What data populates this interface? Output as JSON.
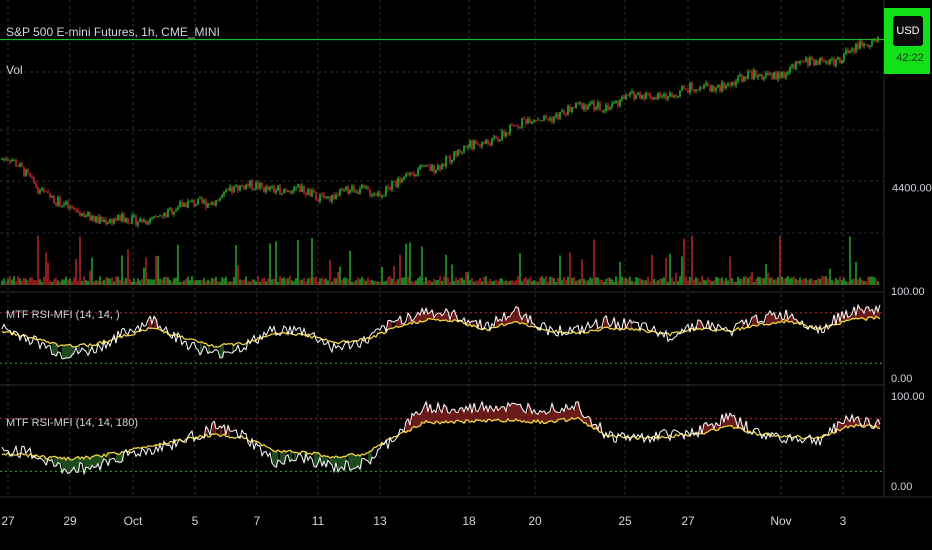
{
  "header": {
    "symbol_title": "S&P 500 E-mini Futures, 1h, CME_MINI",
    "volume_label": "Vol",
    "currency_button": "USD",
    "last_price_fragment": "42:22"
  },
  "pane1": {
    "indicator_label": "MTF RSI-MFI (14, 14, )",
    "top_tick": "100.00",
    "bottom_tick": "0.00"
  },
  "pane2": {
    "indicator_label": "MTF RSI-MFI (14, 14, 180)",
    "top_tick": "100.00",
    "bottom_tick": "0.00"
  },
  "colors": {
    "background": "#000000",
    "candle_up": "#26b12b",
    "candle_down": "#c0282d",
    "rsi_line": "#ffffff",
    "mfi_line": "#f2d43d",
    "overbought_fill": "#6b1a1a",
    "oversold_fill": "#1e4a1e",
    "last_price": "#14e01a"
  },
  "chart_data": [
    {
      "type": "candlestick",
      "title": "S&P 500 E-mini Futures, 1h, CME_MINI",
      "y_ticks": [
        "4400.00"
      ],
      "x_ticks": [
        "27",
        "29",
        "Oct",
        "5",
        "7",
        "11",
        "13",
        "18",
        "20",
        "25",
        "27",
        "Nov",
        "3"
      ],
      "ylim": [
        4250,
        4700
      ],
      "close_anchors": [
        {
          "x": "27",
          "y": 4450
        },
        {
          "x": "29",
          "y": 4355
        },
        {
          "x": "Oct",
          "y": 4335
        },
        {
          "x": "5",
          "y": 4370
        },
        {
          "x": "7",
          "y": 4405
        },
        {
          "x": "11",
          "y": 4385
        },
        {
          "x": "13",
          "y": 4395
        },
        {
          "x": "18",
          "y": 4470
        },
        {
          "x": "20",
          "y": 4525
        },
        {
          "x": "25",
          "y": 4560
        },
        {
          "x": "27",
          "y": 4575
        },
        {
          "x": "Nov",
          "y": 4610
        },
        {
          "x": "3",
          "y": 4640
        }
      ]
    },
    {
      "type": "line",
      "title": "MTF RSI-MFI (14, 14, )",
      "ylim": [
        0,
        100
      ],
      "levels": [
        80,
        20
      ],
      "series": [
        {
          "key": "rsi",
          "values": [
            62,
            48,
            30,
            35,
            55,
            72,
            45,
            30,
            40,
            60,
            58,
            38,
            46,
            70,
            82,
            76,
            64,
            82,
            60,
            58,
            70,
            64,
            52,
            68,
            58,
            74,
            78,
            60,
            82,
            84
          ]
        },
        {
          "key": "mfi",
          "values": [
            58,
            50,
            40,
            42,
            52,
            62,
            50,
            40,
            44,
            56,
            54,
            44,
            48,
            62,
            72,
            70,
            60,
            70,
            58,
            56,
            62,
            60,
            54,
            62,
            58,
            66,
            70,
            60,
            72,
            74
          ]
        }
      ]
    },
    {
      "type": "line",
      "title": "MTF RSI-MFI (14, 14, 180)",
      "ylim": [
        0,
        100
      ],
      "levels": [
        80,
        20
      ],
      "series": [
        {
          "key": "rsi",
          "values": [
            45,
            40,
            22,
            25,
            38,
            45,
            55,
            70,
            60,
            30,
            35,
            24,
            28,
            60,
            95,
            88,
            94,
            92,
            92,
            96,
            60,
            58,
            62,
            66,
            82,
            62,
            58,
            55,
            82,
            72
          ]
        },
        {
          "key": "mfi",
          "values": [
            40,
            38,
            34,
            36,
            42,
            50,
            56,
            62,
            58,
            44,
            42,
            36,
            40,
            60,
            76,
            76,
            78,
            78,
            76,
            80,
            60,
            58,
            60,
            62,
            72,
            62,
            60,
            58,
            72,
            70
          ]
        }
      ]
    }
  ]
}
